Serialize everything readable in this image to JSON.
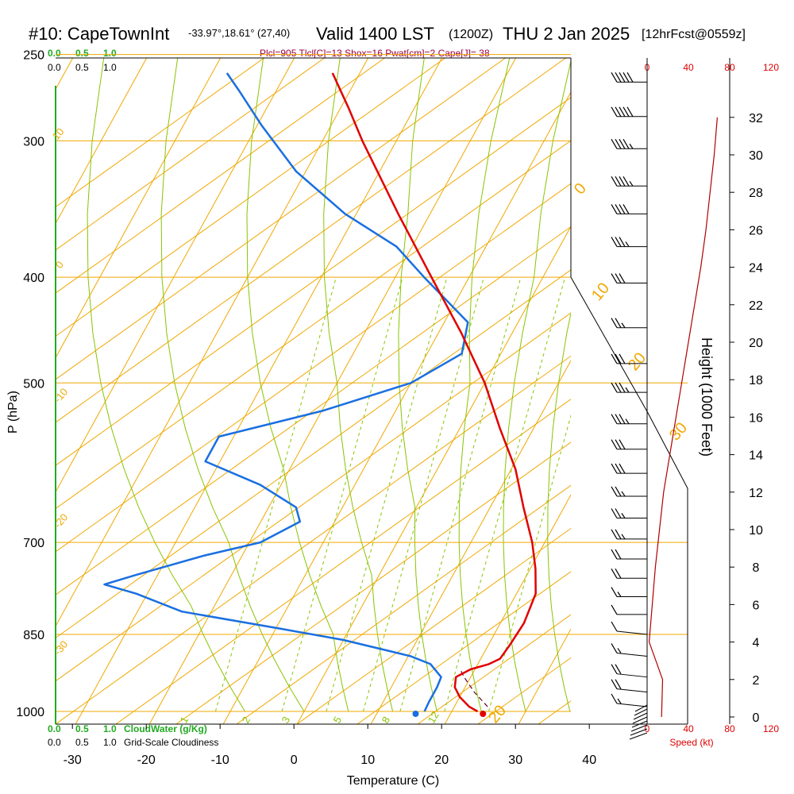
{
  "header": {
    "station": "#10: CapeTownInt",
    "coords": "-33.97°,18.61° (27,40)",
    "valid": "Valid 1400 LST",
    "zulu": "(1200Z)",
    "date": "THU 2 Jan 2025",
    "forecast": "[12hrFcst@0559z]"
  },
  "indices": "Plcl=905 Tlcl[C]=13 Shox=16 Pwat[cm]=2 Cape[J]= 38",
  "cloudwater_scale": {
    "values": [
      "0.0",
      "0.5",
      "1.0"
    ],
    "label": "CloudWater (g/Kg)",
    "color": "#22aa22"
  },
  "cloudiness_scale": {
    "values": [
      "0.0",
      "0.5",
      "1.0"
    ],
    "label": "Grid-Scale Cloudiness"
  },
  "speed_scale": {
    "top_values": [
      "0",
      "40",
      "80",
      "120"
    ],
    "bottom_values": [
      "0",
      "40",
      "80",
      "120"
    ],
    "label": "Speed (kt)",
    "color": "#dd0000"
  },
  "colors": {
    "temperature": "#e00000",
    "dewpoint": "#1a6fe0",
    "isotherm": "#f0a800",
    "mixing_ratio": "#88c400",
    "cloud": "#22aa22",
    "parcel": "#600030",
    "indices": "#990044"
  },
  "chart_data": {
    "type": "skew-t sounding",
    "xlabel": "Temperature (C)",
    "ylabel": "P (hPa)",
    "y2label": "Height (1000 Feet)",
    "x_ticks": [
      -30,
      -20,
      -10,
      0,
      10,
      20,
      30,
      40
    ],
    "pressure_ticks": [
      250,
      300,
      400,
      500,
      700,
      850,
      1000
    ],
    "height_ticks": [
      0,
      2,
      4,
      6,
      8,
      10,
      12,
      14,
      16,
      18,
      20,
      22,
      24,
      26,
      28,
      30,
      32
    ],
    "isotherm_labels": [
      "10",
      "0",
      "-10",
      "-20",
      "-30",
      "0",
      "10",
      "20",
      "30",
      "20"
    ],
    "mixing_ratio_labels": [
      "1",
      "2",
      "3",
      "5",
      "8",
      "12"
    ],
    "temperature_profile": [
      {
        "p": 1000,
        "t": 23.5
      },
      {
        "p": 990,
        "t": 22.0
      },
      {
        "p": 970,
        "t": 20.0
      },
      {
        "p": 950,
        "t": 18.6
      },
      {
        "p": 930,
        "t": 18.0
      },
      {
        "p": 915,
        "t": 19.4
      },
      {
        "p": 905,
        "t": 21.5
      },
      {
        "p": 895,
        "t": 22.6
      },
      {
        "p": 870,
        "t": 22.9
      },
      {
        "p": 830,
        "t": 23.2
      },
      {
        "p": 780,
        "t": 22.6
      },
      {
        "p": 740,
        "t": 20.7
      },
      {
        "p": 700,
        "t": 18.3
      },
      {
        "p": 650,
        "t": 14.5
      },
      {
        "p": 600,
        "t": 10.6
      },
      {
        "p": 550,
        "t": 5.4
      },
      {
        "p": 500,
        "t": 0.0
      },
      {
        "p": 450,
        "t": -6.9
      },
      {
        "p": 400,
        "t": -15.1
      },
      {
        "p": 350,
        "t": -24.3
      },
      {
        "p": 300,
        "t": -34.6
      },
      {
        "p": 280,
        "t": -38.9
      },
      {
        "p": 260,
        "t": -43.7
      }
    ],
    "dewpoint_profile": [
      {
        "p": 1000,
        "t": 16.3
      },
      {
        "p": 980,
        "t": 16.2
      },
      {
        "p": 950,
        "t": 16.2
      },
      {
        "p": 930,
        "t": 16.0
      },
      {
        "p": 905,
        "t": 13.6
      },
      {
        "p": 890,
        "t": 10.3
      },
      {
        "p": 860,
        "t": 0.0
      },
      {
        "p": 840,
        "t": -9.3
      },
      {
        "p": 810,
        "t": -24.0
      },
      {
        "p": 780,
        "t": -31.5
      },
      {
        "p": 765,
        "t": -36.5
      },
      {
        "p": 750,
        "t": -33.0
      },
      {
        "p": 720,
        "t": -25.2
      },
      {
        "p": 700,
        "t": -18.5
      },
      {
        "p": 670,
        "t": -14.7
      },
      {
        "p": 650,
        "t": -16.3
      },
      {
        "p": 620,
        "t": -22.8
      },
      {
        "p": 590,
        "t": -32.0
      },
      {
        "p": 560,
        "t": -32.0
      },
      {
        "p": 530,
        "t": -19.8
      },
      {
        "p": 500,
        "t": -10.0
      },
      {
        "p": 470,
        "t": -5.3
      },
      {
        "p": 440,
        "t": -6.8
      },
      {
        "p": 400,
        "t": -16.1
      },
      {
        "p": 375,
        "t": -22.1
      },
      {
        "p": 350,
        "t": -31.5
      },
      {
        "p": 320,
        "t": -41.3
      },
      {
        "p": 290,
        "t": -49.5
      },
      {
        "p": 270,
        "t": -55.0
      },
      {
        "p": 260,
        "t": -58.0
      }
    ],
    "parcel_path": [
      {
        "p": 990,
        "t": 24.5
      },
      {
        "p": 960,
        "t": 21.6
      },
      {
        "p": 930,
        "t": 19.1
      },
      {
        "p": 915,
        "t": 18.0
      }
    ],
    "surface_temperature_c": 25,
    "surface_dewpoint_c": 18,
    "wind_barbs": [
      {
        "p": 265,
        "dir": 270,
        "kt": 50
      },
      {
        "p": 285,
        "dir": 270,
        "kt": 50
      },
      {
        "p": 305,
        "dir": 270,
        "kt": 45
      },
      {
        "p": 330,
        "dir": 270,
        "kt": 45
      },
      {
        "p": 350,
        "dir": 270,
        "kt": 40
      },
      {
        "p": 375,
        "dir": 270,
        "kt": 35
      },
      {
        "p": 405,
        "dir": 270,
        "kt": 30
      },
      {
        "p": 445,
        "dir": 270,
        "kt": 25
      },
      {
        "p": 480,
        "dir": 275,
        "kt": 30
      },
      {
        "p": 510,
        "dir": 280,
        "kt": 35
      },
      {
        "p": 545,
        "dir": 280,
        "kt": 35
      },
      {
        "p": 575,
        "dir": 280,
        "kt": 30
      },
      {
        "p": 605,
        "dir": 285,
        "kt": 30
      },
      {
        "p": 635,
        "dir": 285,
        "kt": 25
      },
      {
        "p": 665,
        "dir": 290,
        "kt": 25
      },
      {
        "p": 695,
        "dir": 290,
        "kt": 25
      },
      {
        "p": 725,
        "dir": 295,
        "kt": 20
      },
      {
        "p": 755,
        "dir": 295,
        "kt": 20
      },
      {
        "p": 785,
        "dir": 300,
        "kt": 15
      },
      {
        "p": 815,
        "dir": 300,
        "kt": 10
      },
      {
        "p": 850,
        "dir": 320,
        "kt": 10
      },
      {
        "p": 890,
        "dir": 180,
        "kt": 15
      },
      {
        "p": 930,
        "dir": 170,
        "kt": 20
      },
      {
        "p": 960,
        "dir": 170,
        "kt": 20
      },
      {
        "p": 990,
        "dir": 170,
        "kt": 15
      }
    ],
    "speed_profile": [
      {
        "h": 0,
        "kt": 14
      },
      {
        "h": 2,
        "kt": 15
      },
      {
        "h": 4,
        "kt": 2
      },
      {
        "h": 6,
        "kt": 5
      },
      {
        "h": 8,
        "kt": 8
      },
      {
        "h": 10,
        "kt": 12
      },
      {
        "h": 12,
        "kt": 16
      },
      {
        "h": 14,
        "kt": 22
      },
      {
        "h": 16,
        "kt": 28
      },
      {
        "h": 18,
        "kt": 34
      },
      {
        "h": 20,
        "kt": 40
      },
      {
        "h": 22,
        "kt": 46
      },
      {
        "h": 24,
        "kt": 52
      },
      {
        "h": 26,
        "kt": 57
      },
      {
        "h": 28,
        "kt": 61
      },
      {
        "h": 30,
        "kt": 65
      },
      {
        "h": 32,
        "kt": 68
      }
    ]
  }
}
